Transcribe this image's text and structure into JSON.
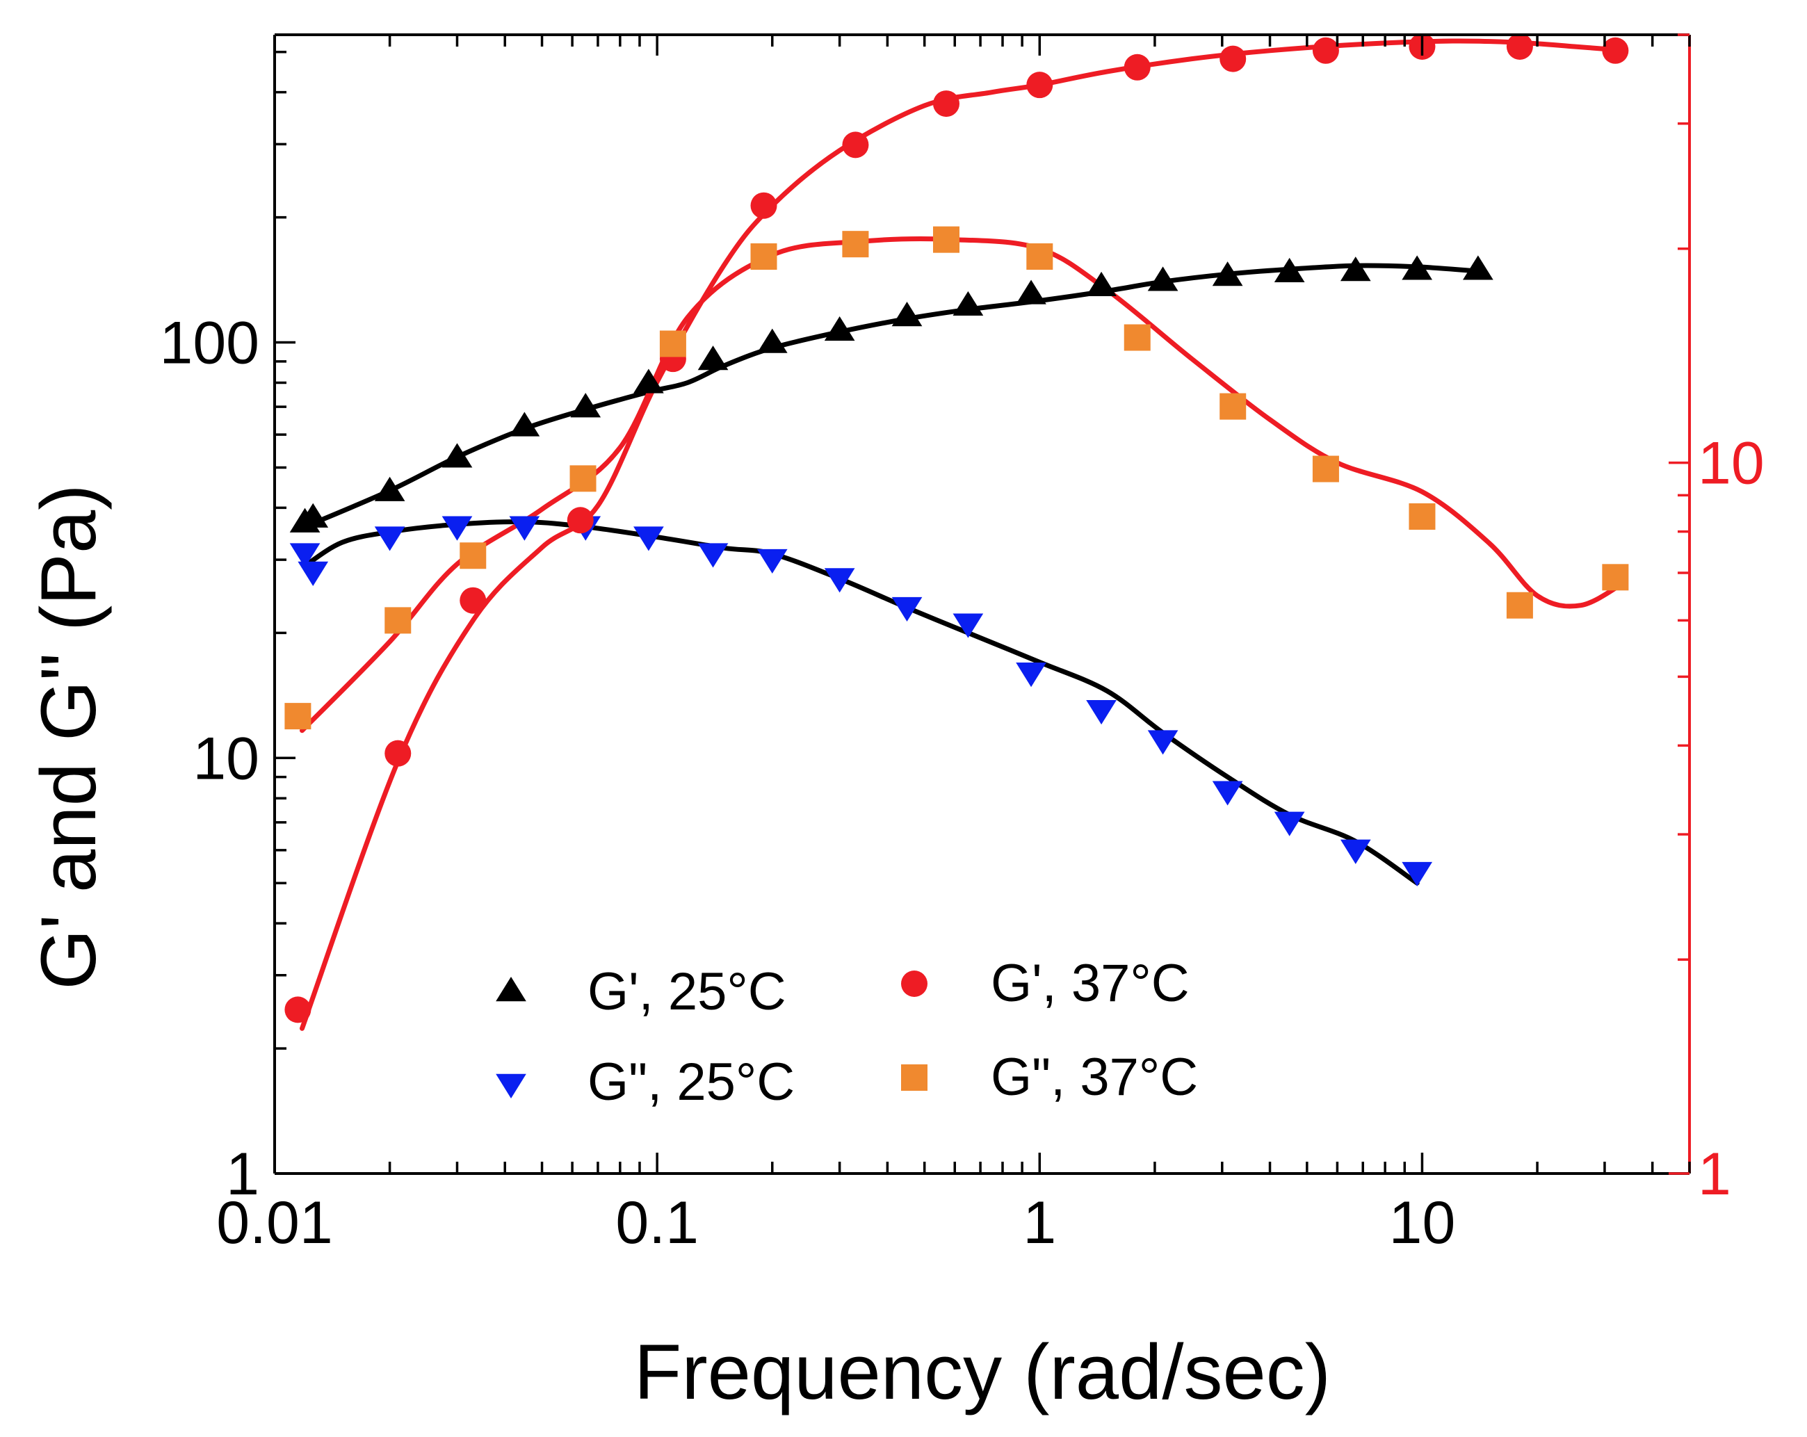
{
  "chart_data": {
    "type": "scatter",
    "xlabel": "Frequency (rad/sec)",
    "ylabel": "G' and G\" (Pa)",
    "x_scale": "log",
    "y_scale": "log",
    "xlim": [
      0.01,
      50
    ],
    "ylim_left": [
      1,
      550
    ],
    "ylim_right": [
      1,
      40
    ],
    "x_ticks": [
      {
        "value": 0.01,
        "label": "0.01"
      },
      {
        "value": 0.1,
        "label": "0.1"
      },
      {
        "value": 1,
        "label": "1"
      },
      {
        "value": 10,
        "label": "10"
      }
    ],
    "y_left_ticks": [
      {
        "value": 1,
        "label": "1"
      },
      {
        "value": 10,
        "label": "10"
      },
      {
        "value": 100,
        "label": "100"
      }
    ],
    "y_right_ticks": [
      {
        "value": 1,
        "label": "1"
      },
      {
        "value": 10,
        "label": "10"
      }
    ],
    "right_axis_color": "#ee1c24",
    "legend_position": "lower-center",
    "series": [
      {
        "name": "G', 25°C",
        "axis": "left",
        "marker": "triangle-up",
        "color": "#000000",
        "points": [
          [
            0.012,
            37
          ],
          [
            0.0126,
            38
          ],
          [
            0.02,
            44
          ],
          [
            0.03,
            53
          ],
          [
            0.045,
            63
          ],
          [
            0.065,
            70
          ],
          [
            0.095,
            80
          ],
          [
            0.14,
            91
          ],
          [
            0.2,
            100
          ],
          [
            0.3,
            107
          ],
          [
            0.45,
            116
          ],
          [
            0.65,
            123
          ],
          [
            0.95,
            131
          ],
          [
            1.45,
            137
          ],
          [
            2.1,
            141
          ],
          [
            3.1,
            145
          ],
          [
            4.5,
            148
          ],
          [
            6.7,
            149
          ],
          [
            9.7,
            150
          ],
          [
            14,
            150
          ]
        ],
        "fit_color": "#000000",
        "fit": [
          [
            0.012,
            36
          ],
          [
            0.02,
            44
          ],
          [
            0.03,
            53
          ],
          [
            0.045,
            62
          ],
          [
            0.065,
            69
          ],
          [
            0.095,
            76
          ],
          [
            0.12,
            80
          ],
          [
            0.15,
            88
          ],
          [
            0.2,
            97
          ],
          [
            0.3,
            106
          ],
          [
            0.45,
            114
          ],
          [
            0.65,
            120
          ],
          [
            1,
            126
          ],
          [
            1.5,
            133
          ],
          [
            2.1,
            140
          ],
          [
            3.1,
            146
          ],
          [
            4.5,
            150
          ],
          [
            6.7,
            153
          ],
          [
            9.7,
            152
          ],
          [
            14.5,
            148
          ]
        ]
      },
      {
        "name": "G\", 25°C",
        "axis": "left",
        "marker": "triangle-down",
        "color": "#0a1ff0",
        "points": [
          [
            0.012,
            31
          ],
          [
            0.0126,
            28
          ],
          [
            0.02,
            34
          ],
          [
            0.03,
            36
          ],
          [
            0.045,
            36
          ],
          [
            0.065,
            36
          ],
          [
            0.095,
            34
          ],
          [
            0.14,
            31
          ],
          [
            0.2,
            30
          ],
          [
            0.3,
            27
          ],
          [
            0.45,
            23
          ],
          [
            0.65,
            21
          ],
          [
            0.95,
            16
          ],
          [
            1.45,
            13
          ],
          [
            2.1,
            11
          ],
          [
            3.1,
            8.3
          ],
          [
            4.5,
            7
          ],
          [
            6.7,
            6
          ],
          [
            9.7,
            5.3
          ]
        ],
        "fit_color": "#000000",
        "fit": [
          [
            0.012,
            29
          ],
          [
            0.015,
            33
          ],
          [
            0.02,
            35
          ],
          [
            0.03,
            36.5
          ],
          [
            0.045,
            37
          ],
          [
            0.065,
            36
          ],
          [
            0.1,
            34
          ],
          [
            0.15,
            32
          ],
          [
            0.2,
            31
          ],
          [
            0.3,
            27
          ],
          [
            0.45,
            23
          ],
          [
            0.65,
            20
          ],
          [
            1,
            17
          ],
          [
            1.5,
            14.5
          ],
          [
            2.1,
            11.5
          ],
          [
            3.1,
            9
          ],
          [
            4.5,
            7.3
          ],
          [
            6.7,
            6.3
          ],
          [
            9.7,
            5
          ]
        ]
      },
      {
        "name": "G', 37°C",
        "axis": "right",
        "marker": "circle",
        "color": "#ee1c24",
        "points": [
          [
            0.0115,
            1.7
          ],
          [
            0.021,
            3.9
          ],
          [
            0.033,
            6.4
          ],
          [
            0.063,
            8.3
          ],
          [
            0.11,
            14
          ],
          [
            0.19,
            23
          ],
          [
            0.33,
            28
          ],
          [
            0.57,
            32
          ],
          [
            1.0,
            34
          ],
          [
            1.8,
            36
          ],
          [
            3.2,
            37
          ],
          [
            5.6,
            38
          ],
          [
            10,
            38.5
          ],
          [
            18,
            38.5
          ],
          [
            32,
            38
          ]
        ],
        "fit_color": "#ee1c24",
        "fit": [
          [
            0.0118,
            1.6
          ],
          [
            0.021,
            3.8
          ],
          [
            0.033,
            6
          ],
          [
            0.05,
            7.6
          ],
          [
            0.07,
            8.7
          ],
          [
            0.1,
            13
          ],
          [
            0.15,
            19
          ],
          [
            0.2,
            23
          ],
          [
            0.3,
            27.5
          ],
          [
            0.5,
            31.8
          ],
          [
            0.75,
            33.2
          ],
          [
            1,
            34
          ],
          [
            1.5,
            35.5
          ],
          [
            2.5,
            37
          ],
          [
            4,
            38
          ],
          [
            7,
            38.8
          ],
          [
            12,
            39.2
          ],
          [
            18,
            39
          ],
          [
            25,
            38.5
          ],
          [
            34,
            38
          ]
        ]
      },
      {
        "name": "G\", 37°C",
        "axis": "right",
        "marker": "square",
        "color": "#f0892f",
        "points": [
          [
            0.0115,
            4.4
          ],
          [
            0.021,
            6
          ],
          [
            0.033,
            7.4
          ],
          [
            0.064,
            9.5
          ],
          [
            0.11,
            14.7
          ],
          [
            0.19,
            19.5
          ],
          [
            0.33,
            20.3
          ],
          [
            0.57,
            20.6
          ],
          [
            1.0,
            19.5
          ],
          [
            1.8,
            15
          ],
          [
            3.2,
            12
          ],
          [
            5.6,
            9.8
          ],
          [
            10,
            8.4
          ],
          [
            18,
            6.3
          ],
          [
            32,
            6.9
          ]
        ],
        "fit_color": "#ee1c24",
        "fit": [
          [
            0.0118,
            4.2
          ],
          [
            0.02,
            5.6
          ],
          [
            0.03,
            7.2
          ],
          [
            0.05,
            8.6
          ],
          [
            0.08,
            10.5
          ],
          [
            0.12,
            16
          ],
          [
            0.2,
            19.6
          ],
          [
            0.35,
            20.5
          ],
          [
            0.6,
            20.6
          ],
          [
            1.0,
            20
          ],
          [
            1.5,
            17.5
          ],
          [
            2.5,
            14
          ],
          [
            4,
            11.5
          ],
          [
            6,
            10
          ],
          [
            10,
            9.1
          ],
          [
            15,
            7.7
          ],
          [
            20,
            6.5
          ],
          [
            26,
            6.3
          ],
          [
            34,
            6.8
          ]
        ]
      }
    ]
  }
}
